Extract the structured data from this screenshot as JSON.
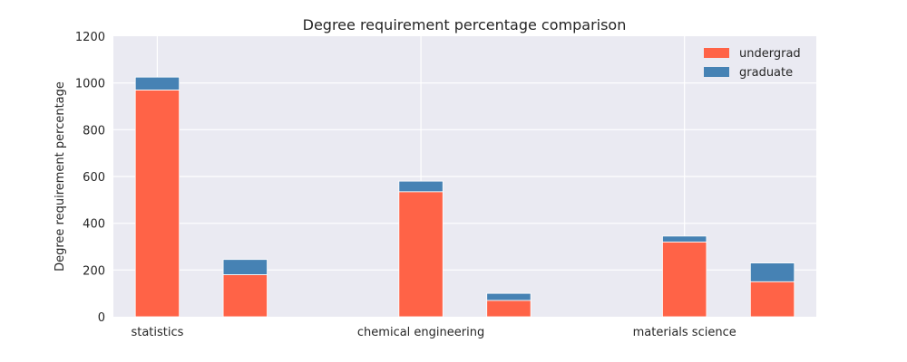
{
  "chart_data": {
    "type": "bar",
    "stacked": true,
    "title": "Degree requirement percentage comparison",
    "xlabel": "",
    "ylabel": "Degree requirement percentage",
    "ylim": [
      0,
      1200
    ],
    "yticks": [
      0,
      200,
      400,
      600,
      800,
      1000,
      1200
    ],
    "categories": [
      "statistics",
      "chemical engineering",
      "materials science"
    ],
    "grid": true,
    "legend_position": "top-right",
    "bars": [
      {
        "x": 0.5,
        "undergrad": 970,
        "graduate": 55
      },
      {
        "x": 1.5,
        "undergrad": 180,
        "graduate": 65
      },
      {
        "x": 3.5,
        "undergrad": 535,
        "graduate": 45
      },
      {
        "x": 4.5,
        "undergrad": 70,
        "graduate": 30
      },
      {
        "x": 6.5,
        "undergrad": 320,
        "graduate": 25
      },
      {
        "x": 7.5,
        "undergrad": 150,
        "graduate": 80
      }
    ],
    "category_positions": [
      0.5,
      3.5,
      6.5
    ],
    "xlim": [
      0,
      8
    ],
    "series": [
      {
        "name": "undergrad",
        "color": "#FF6347"
      },
      {
        "name": "graduate",
        "color": "#4682B4"
      }
    ],
    "background_color": "#EAEAF2"
  }
}
